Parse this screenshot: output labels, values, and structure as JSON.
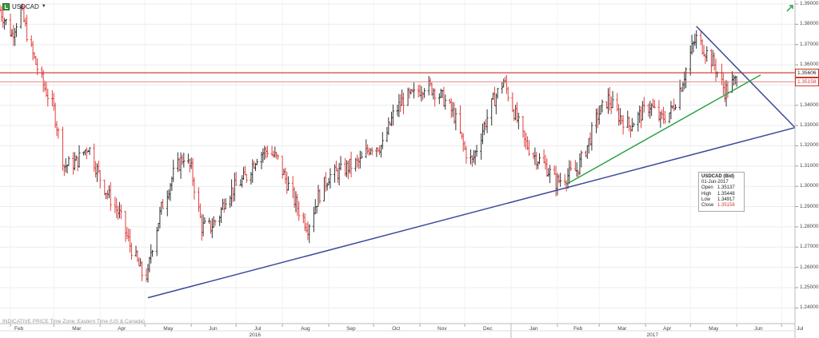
{
  "header": {
    "symbol": "USDCAD"
  },
  "footer": {
    "note": "INDICATIVE PRICE  Time Zone: Eastern Time (US & Canada)"
  },
  "price_axis": {
    "labels": [
      "1.39000",
      "1.38000",
      "1.37000",
      "1.36000",
      "1.35000",
      "1.34000",
      "1.33000",
      "1.32000",
      "1.31000",
      "1.30000",
      "1.29000",
      "1.28000",
      "1.27000",
      "1.26000",
      "1.25000",
      "1.24000"
    ],
    "tags": [
      {
        "text": "1.35606",
        "color": "#c8321e"
      },
      {
        "text": "1.35158",
        "color": "#d23a3a"
      }
    ]
  },
  "time_axis": {
    "months": [
      "Feb",
      "Mar",
      "Apr",
      "May",
      "Jun",
      "Jul",
      "Aug",
      "Sep",
      "Oct",
      "Nov",
      "Dec",
      "Jan",
      "Feb",
      "Mar",
      "Apr",
      "May",
      "Jun",
      "Jul"
    ],
    "years": [
      "2016",
      "2017"
    ]
  },
  "info_box": {
    "title": "USDCAD (Bid)",
    "date": "01-Jun-2017",
    "rows": [
      {
        "key": "Open",
        "value": "1.35137"
      },
      {
        "key": "High",
        "value": "1.35448"
      },
      {
        "key": "Low",
        "value": "1.34917"
      },
      {
        "key": "Close",
        "value": "1.35158"
      }
    ],
    "close_color": "#d23a3a"
  },
  "chart_data": {
    "type": "ohlc",
    "symbol": "USDCAD",
    "x_range": [
      "2016-01-25",
      "2017-07-10"
    ],
    "ylim": [
      1.235,
      1.39
    ],
    "grid": true,
    "up_color": "#333333",
    "down_color": "#e04040",
    "close_path": [
      [
        "2016-01-25",
        1.387
      ],
      [
        "2016-02-02",
        1.375
      ],
      [
        "2016-02-08",
        1.387
      ],
      [
        "2016-02-15",
        1.367
      ],
      [
        "2016-02-22",
        1.352
      ],
      [
        "2016-03-01",
        1.338
      ],
      [
        "2016-03-08",
        1.31
      ],
      [
        "2016-03-16",
        1.312
      ],
      [
        "2016-03-24",
        1.32
      ],
      [
        "2016-04-01",
        1.304
      ],
      [
        "2016-04-07",
        1.295
      ],
      [
        "2016-04-14",
        1.286
      ],
      [
        "2016-04-21",
        1.271
      ],
      [
        "2016-04-29",
        1.257
      ],
      [
        "2016-05-03",
        1.256
      ],
      [
        "2016-05-05",
        1.268
      ],
      [
        "2016-05-12",
        1.289
      ],
      [
        "2016-05-20",
        1.306
      ],
      [
        "2016-05-27",
        1.315
      ],
      [
        "2016-06-01",
        1.308
      ],
      [
        "2016-06-08",
        1.28
      ],
      [
        "2016-06-14",
        1.28
      ],
      [
        "2016-06-20",
        1.286
      ],
      [
        "2016-06-24",
        1.295
      ],
      [
        "2016-07-01",
        1.3
      ],
      [
        "2016-07-08",
        1.305
      ],
      [
        "2016-07-15",
        1.315
      ],
      [
        "2016-07-22",
        1.318
      ],
      [
        "2016-07-29",
        1.313
      ],
      [
        "2016-08-05",
        1.3
      ],
      [
        "2016-08-12",
        1.288
      ],
      [
        "2016-08-18",
        1.28
      ],
      [
        "2016-08-25",
        1.295
      ],
      [
        "2016-09-01",
        1.305
      ],
      [
        "2016-09-08",
        1.307
      ],
      [
        "2016-09-15",
        1.31
      ],
      [
        "2016-09-22",
        1.312
      ],
      [
        "2016-09-29",
        1.32
      ],
      [
        "2016-10-07",
        1.32
      ],
      [
        "2016-10-14",
        1.335
      ],
      [
        "2016-10-21",
        1.343
      ],
      [
        "2016-10-28",
        1.345
      ],
      [
        "2016-11-04",
        1.35
      ],
      [
        "2016-11-10",
        1.348
      ],
      [
        "2016-11-17",
        1.343
      ],
      [
        "2016-11-24",
        1.335
      ],
      [
        "2016-12-01",
        1.318
      ],
      [
        "2016-12-06",
        1.312
      ],
      [
        "2016-12-13",
        1.328
      ],
      [
        "2016-12-20",
        1.342
      ],
      [
        "2016-12-27",
        1.352
      ],
      [
        "2017-01-03",
        1.337
      ],
      [
        "2017-01-10",
        1.322
      ],
      [
        "2017-01-17",
        1.315
      ],
      [
        "2017-01-24",
        1.31
      ],
      [
        "2017-01-31",
        1.302
      ],
      [
        "2017-02-07",
        1.305
      ],
      [
        "2017-02-14",
        1.308
      ],
      [
        "2017-02-21",
        1.32
      ],
      [
        "2017-02-28",
        1.335
      ],
      [
        "2017-03-07",
        1.343
      ],
      [
        "2017-03-14",
        1.335
      ],
      [
        "2017-03-21",
        1.33
      ],
      [
        "2017-03-28",
        1.335
      ],
      [
        "2017-04-04",
        1.34
      ],
      [
        "2017-04-11",
        1.333
      ],
      [
        "2017-04-18",
        1.337
      ],
      [
        "2017-04-25",
        1.35
      ],
      [
        "2017-05-02",
        1.368
      ],
      [
        "2017-05-05",
        1.373
      ],
      [
        "2017-05-10",
        1.368
      ],
      [
        "2017-05-17",
        1.36
      ],
      [
        "2017-05-24",
        1.347
      ],
      [
        "2017-05-31",
        1.352
      ],
      [
        "2017-06-01",
        1.3516
      ]
    ],
    "last_bar": {
      "date": "2017-06-01",
      "open": 1.35137,
      "high": 1.35448,
      "low": 1.34917,
      "close": 1.35158
    },
    "horizontal_lines": [
      {
        "value": 1.35606,
        "color": "#c8321e"
      },
      {
        "value": 1.35158,
        "color": "#e08080"
      }
    ],
    "trend_lines": [
      {
        "color": "#3a4a9a",
        "from": [
          "2016-05-03",
          1.245
        ],
        "to": [
          "2017-07-10",
          1.329
        ]
      },
      {
        "color": "#3a4a9a",
        "from": [
          "2017-05-05",
          1.379
        ],
        "to": [
          "2017-07-10",
          1.329
        ]
      },
      {
        "color": "#2da34a",
        "from": [
          "2017-02-07",
          1.301
        ],
        "to": [
          "2017-06-17",
          1.355
        ]
      }
    ]
  }
}
